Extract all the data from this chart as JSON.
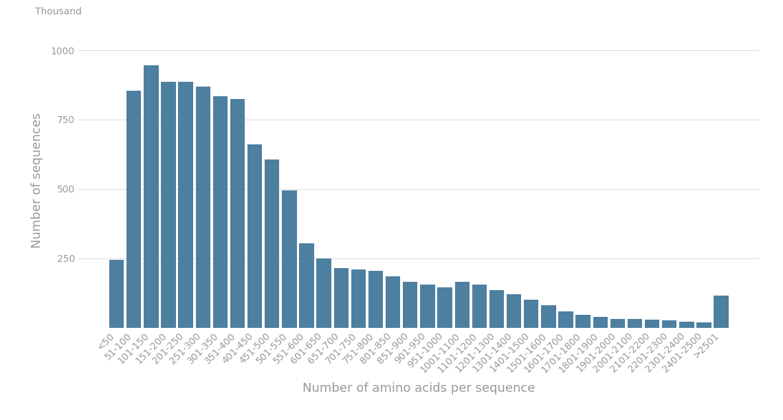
{
  "categories": [
    "<50",
    "51-100",
    "101-150",
    "151-200",
    "201-250",
    "251-300",
    "301-350",
    "351-400",
    "401-450",
    "451-500",
    "501-550",
    "551-600",
    "601-650",
    "651-700",
    "701-750",
    "751-800",
    "801-850",
    "851-900",
    "901-950",
    "951-1000",
    "1001-1100",
    "1101-1200",
    "1201-1300",
    "1301-1400",
    "1401-1500",
    "1501-1600",
    "1601-1700",
    "1701-1800",
    "1801-1900",
    "1901-2000",
    "2001-2100",
    "2101-2200",
    "2201-2300",
    "2301-2400",
    "2401-2500",
    ">2501"
  ],
  "values": [
    245,
    855,
    945,
    885,
    885,
    870,
    835,
    825,
    660,
    605,
    495,
    305,
    250,
    215,
    210,
    205,
    185,
    165,
    155,
    145,
    165,
    155,
    135,
    120,
    100,
    80,
    58,
    45,
    38,
    32,
    30,
    28,
    25,
    22,
    20,
    115
  ],
  "bar_color": "#4d7fa0",
  "xlabel": "Number of amino acids per sequence",
  "ylabel": "Number of sequences",
  "ylabel_unit": "Thousand",
  "background_color": "#ffffff",
  "grid_color": "#dddddd",
  "yticks": [
    250,
    500,
    750,
    1000
  ],
  "ylim": [
    0,
    1060
  ],
  "label_fontsize": 13,
  "tick_fontsize": 10,
  "text_color": "#999999"
}
